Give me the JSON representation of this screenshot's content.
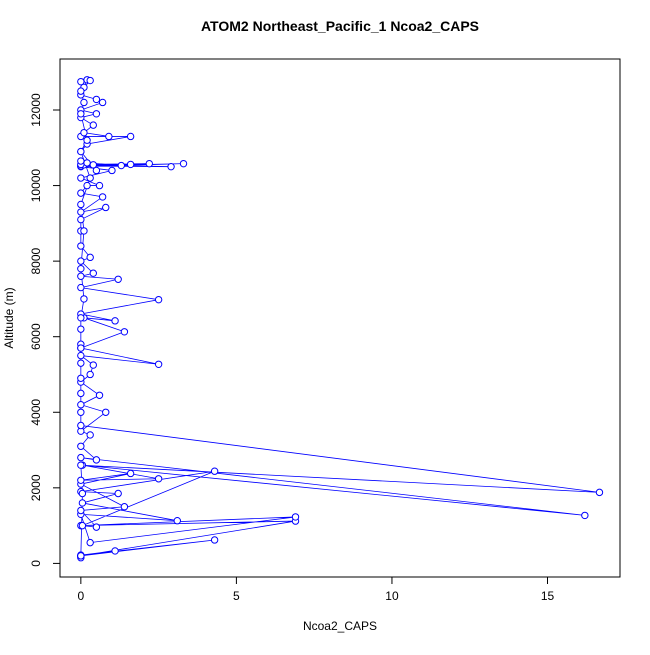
{
  "chart_data": {
    "type": "line",
    "title": "ATOM2 Northeast_Pacific_1 Ncoa2_CAPS",
    "x_label": "Ncoa2_CAPS",
    "y_label": "Altitude (m)",
    "color": "#0000ff",
    "marker": "circle",
    "x": [
      0,
      0,
      1.1,
      0,
      4.3,
      0,
      6.9,
      0,
      6.9,
      0.3,
      0,
      3.1,
      0.05,
      1.2,
      0,
      4.3,
      0.05,
      0.5,
      0,
      1.4,
      0,
      1.6,
      0,
      2.5,
      0.05,
      16.2,
      0,
      0.5,
      0,
      0.3,
      0,
      0.8,
      0,
      0.6,
      0,
      0.3,
      0.4,
      0,
      2.5,
      0,
      1.4,
      0.1,
      1.1,
      0,
      2.5,
      0,
      1.2,
      0,
      0.4,
      0,
      0.3,
      0,
      0,
      0,
      0.8,
      0,
      0.7,
      0,
      0.2,
      0.6,
      0,
      1.0,
      0,
      3.3,
      0,
      2.9,
      0.1,
      2.2,
      0,
      1.6,
      0.4,
      1.3,
      0.2,
      0,
      0.5,
      0,
      0.2,
      1.6,
      0,
      0.9,
      0.1,
      0.4,
      0,
      0.5,
      0,
      0.7,
      0.5,
      0,
      0.1,
      0.2,
      0,
      0.3,
      0,
      0.1,
      0,
      0.2,
      0,
      0.3,
      0,
      0.1,
      0,
      0.1,
      0,
      0,
      0,
      0,
      0,
      0,
      0,
      0,
      0,
      16.67,
      0,
      0.05,
      0
    ],
    "values": [
      150,
      200,
      330,
      220,
      620,
      200,
      1120,
      1000,
      1230,
      550,
      1300,
      1130,
      1600,
      1850,
      1900,
      2440,
      1000,
      960,
      1400,
      1500,
      2100,
      2380,
      2200,
      2240,
      2600,
      1270,
      2800,
      2740,
      3100,
      3400,
      3500,
      4000,
      4200,
      4450,
      4800,
      5000,
      5250,
      5500,
      5270,
      5700,
      6130,
      6500,
      6420,
      6600,
      6980,
      7300,
      7520,
      7600,
      7680,
      8000,
      8100,
      8400,
      8800,
      9100,
      9420,
      9300,
      9700,
      9800,
      10000,
      10000,
      10200,
      10400,
      10500,
      10580,
      10520,
      10500,
      10550,
      10580,
      10560,
      10560,
      10550,
      10530,
      10600,
      10650,
      10400,
      10900,
      11100,
      11300,
      11300,
      11300,
      11400,
      11600,
      11800,
      11900,
      12000,
      12200,
      12280,
      12400,
      12600,
      12800,
      12750,
      12780,
      12500,
      12200,
      11900,
      11200,
      10900,
      10200,
      9500,
      8800,
      7800,
      7000,
      6500,
      6200,
      5800,
      5700,
      5300,
      4900,
      4500,
      4000,
      3650,
      1880,
      2600,
      1850,
      200
    ],
    "xlim": [
      -0.67,
      17.33
    ],
    "ylim": [
      -360,
      13350
    ],
    "xticks": [
      0,
      5,
      10,
      15
    ],
    "yticks": [
      0,
      2000,
      4000,
      6000,
      8000,
      10000,
      12000
    ]
  }
}
